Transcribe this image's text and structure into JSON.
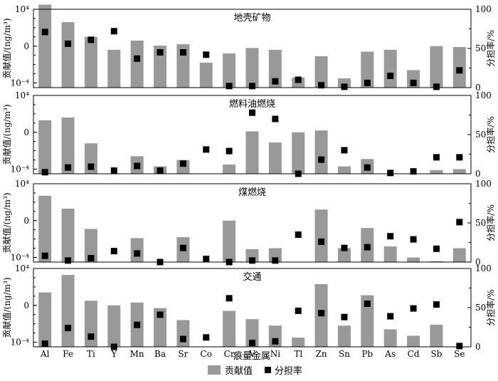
{
  "chart_data": {
    "type": "bar",
    "categories": [
      "Al",
      "Fe",
      "Ti",
      "Y",
      "Mn",
      "Ba",
      "Sr",
      "Co",
      "Cr",
      "V",
      "Ni",
      "Tl",
      "Zn",
      "Sn",
      "Pb",
      "As",
      "Cd",
      "Sb",
      "Se"
    ],
    "xlabel": "痕量金属",
    "ylabel_left": "贡献值/(ng/m³)",
    "ylabel_right": "分担率/%",
    "left_scale": "log",
    "left_ticks": [
      "10⁴",
      "0",
      "10⁻⁴"
    ],
    "right_ticks": [
      "0",
      "50",
      "100"
    ],
    "right_ylim": [
      0,
      100
    ],
    "legend": {
      "bar_label": "贡献值",
      "marker_label": "分担率",
      "position": "bottom-center",
      "bar_color": "#999999",
      "marker_color": "#000000"
    },
    "panels": [
      {
        "title": "地壳矿物",
        "contribution": [
          4.5,
          2.6,
          1.0,
          -0.4,
          0.6,
          0.05,
          0.2,
          -1.8,
          -0.8,
          -0.2,
          -0.4,
          -3.4,
          -1.1,
          -3.5,
          -0.6,
          -0.4,
          -2.6,
          0,
          -0.1
        ],
        "share": [
          71,
          56,
          61,
          72,
          37,
          45,
          45,
          42,
          2,
          2,
          8,
          10,
          3,
          1,
          6,
          15,
          6,
          1,
          22
        ]
      },
      {
        "title": "燃料油燃烧",
        "contribution": [
          1.3,
          1.6,
          -1.2,
          -6.0,
          -2.6,
          -3.7,
          -3.0,
          -4.7,
          -3.5,
          0.1,
          -1.1,
          0,
          0.2,
          -3.7,
          -2.9,
          -5.9,
          -5.8,
          -4.1,
          -4.0
        ],
        "share": [
          2,
          8,
          9,
          4,
          10,
          4,
          13,
          31,
          29,
          78,
          70,
          0,
          18,
          30,
          8,
          1,
          3,
          21,
          21
        ]
      },
      {
        "title": "煤燃烧",
        "contribution": [
          2.7,
          1.3,
          -0.9,
          -5.9,
          -1.9,
          -5.2,
          -1.8,
          -6.4,
          0,
          -3.1,
          -3.0,
          -5.8,
          1.2,
          -3.0,
          -0.8,
          -2.8,
          -4.0,
          -4.4,
          -3.0
        ],
        "share": [
          8,
          2,
          5,
          14,
          11,
          0,
          18,
          4,
          0,
          2,
          2,
          35,
          26,
          18,
          19,
          33,
          29,
          17,
          51
        ]
      },
      {
        "title": "交通",
        "contribution": [
          1.4,
          3.3,
          0.5,
          0,
          0.3,
          -0.3,
          -1.6,
          -5.6,
          -0.6,
          -1.5,
          -2.2,
          -3.5,
          2.3,
          -2.2,
          1.1,
          -2.6,
          -3.3,
          -2.1,
          -5.3
        ],
        "share": [
          4,
          24,
          13,
          0,
          28,
          41,
          10,
          12,
          62,
          5,
          7,
          46,
          43,
          38,
          55,
          39,
          49,
          54,
          1
        ]
      }
    ]
  }
}
